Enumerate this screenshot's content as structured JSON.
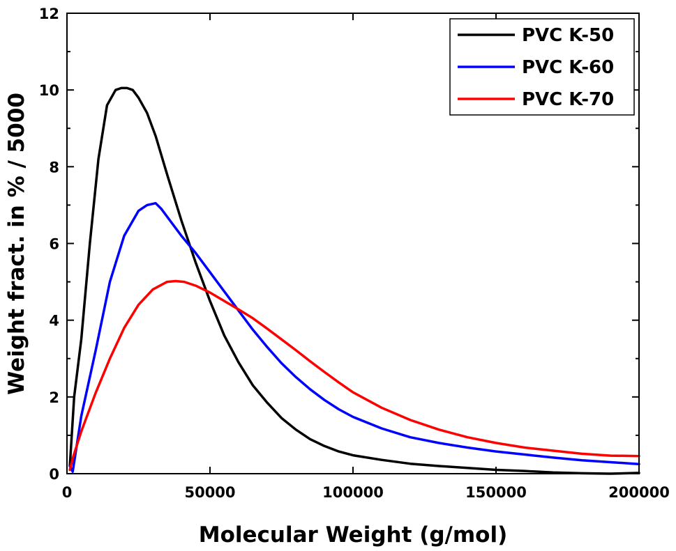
{
  "chart_data": {
    "type": "line",
    "xlabel": "Molecular Weight (g/mol)",
    "ylabel": "Weight fract. in % / 5000",
    "xlim": [
      0,
      200000
    ],
    "ylim": [
      0,
      12
    ],
    "xticks": [
      0,
      50000,
      100000,
      150000,
      200000
    ],
    "xtick_labels": [
      "0",
      "50000",
      "100000",
      "150000",
      "200000"
    ],
    "yticks": [
      0,
      2,
      4,
      6,
      8,
      10,
      12
    ],
    "ytick_labels": [
      "0",
      "2",
      "4",
      "6",
      "8",
      "10",
      "12"
    ],
    "grid": false,
    "legend_position": "top-right",
    "series": [
      {
        "name": "PVC K-50",
        "color": "#000000",
        "x": [
          1000,
          2500,
          5000,
          8000,
          11000,
          14000,
          17000,
          19000,
          21000,
          23000,
          25000,
          28000,
          31000,
          35000,
          40000,
          45000,
          50000,
          55000,
          60000,
          65000,
          70000,
          75000,
          80000,
          85000,
          90000,
          95000,
          100000,
          110000,
          120000,
          130000,
          140000,
          150000,
          160000,
          170000,
          180000,
          190000,
          200000
        ],
        "y": [
          0.2,
          2.0,
          3.5,
          6.0,
          8.2,
          9.6,
          10.0,
          10.05,
          10.05,
          10.0,
          9.8,
          9.4,
          8.8,
          7.8,
          6.6,
          5.5,
          4.5,
          3.6,
          2.9,
          2.3,
          1.85,
          1.45,
          1.15,
          0.9,
          0.72,
          0.58,
          0.48,
          0.36,
          0.26,
          0.2,
          0.15,
          0.1,
          0.07,
          0.03,
          0.01,
          0.0,
          0.02
        ]
      },
      {
        "name": "PVC K-60",
        "color": "#0000ff",
        "x": [
          1000,
          2000,
          5000,
          10000,
          15000,
          20000,
          25000,
          28000,
          31000,
          33000,
          36000,
          40000,
          45000,
          50000,
          55000,
          60000,
          65000,
          70000,
          75000,
          80000,
          85000,
          90000,
          95000,
          100000,
          110000,
          120000,
          130000,
          140000,
          150000,
          160000,
          170000,
          180000,
          190000,
          200000
        ],
        "y": [
          0.2,
          0.05,
          1.5,
          3.2,
          5.0,
          6.2,
          6.85,
          7.0,
          7.05,
          6.9,
          6.6,
          6.2,
          5.75,
          5.25,
          4.75,
          4.25,
          3.75,
          3.3,
          2.88,
          2.52,
          2.2,
          1.92,
          1.68,
          1.48,
          1.18,
          0.95,
          0.8,
          0.68,
          0.58,
          0.5,
          0.42,
          0.35,
          0.3,
          0.25
        ]
      },
      {
        "name": "PVC K-70",
        "color": "#ff0000",
        "x": [
          1000,
          2000,
          5000,
          10000,
          15000,
          20000,
          25000,
          30000,
          35000,
          38000,
          41000,
          45000,
          50000,
          55000,
          60000,
          65000,
          70000,
          75000,
          80000,
          85000,
          90000,
          95000,
          100000,
          110000,
          120000,
          130000,
          140000,
          150000,
          160000,
          170000,
          180000,
          190000,
          200000
        ],
        "y": [
          0.1,
          0.4,
          1.1,
          2.1,
          3.0,
          3.8,
          4.4,
          4.8,
          5.0,
          5.02,
          5.0,
          4.9,
          4.72,
          4.5,
          4.28,
          4.05,
          3.78,
          3.5,
          3.22,
          2.93,
          2.65,
          2.38,
          2.12,
          1.72,
          1.4,
          1.15,
          0.95,
          0.8,
          0.68,
          0.6,
          0.52,
          0.47,
          0.46
        ]
      }
    ]
  }
}
